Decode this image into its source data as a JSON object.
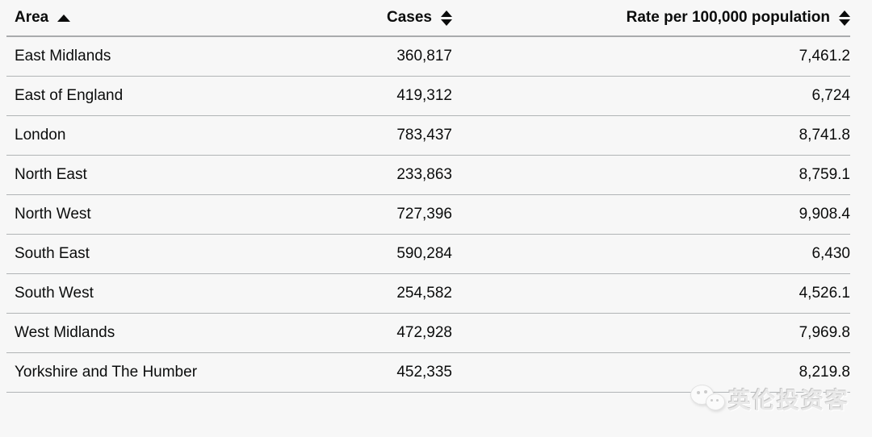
{
  "table": {
    "columns": [
      {
        "label": "Area",
        "sort_state": "ascending",
        "sort_icon": "sort-ascending-icon"
      },
      {
        "label": "Cases",
        "sort_state": "none",
        "sort_icon": "sort-both-icon"
      },
      {
        "label": "Rate per 100,000 population",
        "sort_state": "none",
        "sort_icon": "sort-both-icon"
      }
    ],
    "rows": [
      {
        "area": "East Midlands",
        "cases": "360,817",
        "rate": "7,461.2"
      },
      {
        "area": "East of England",
        "cases": "419,312",
        "rate": "6,724"
      },
      {
        "area": "London",
        "cases": "783,437",
        "rate": "8,741.8"
      },
      {
        "area": "North East",
        "cases": "233,863",
        "rate": "8,759.1"
      },
      {
        "area": "North West",
        "cases": "727,396",
        "rate": "9,908.4"
      },
      {
        "area": "South East",
        "cases": "590,284",
        "rate": "6,430"
      },
      {
        "area": "South West",
        "cases": "254,582",
        "rate": "4,526.1"
      },
      {
        "area": "West Midlands",
        "cases": "472,928",
        "rate": "7,969.8"
      },
      {
        "area": "Yorkshire and The Humber",
        "cases": "452,335",
        "rate": "8,219.8"
      }
    ]
  },
  "watermark": {
    "text": "英伦投资客",
    "icon": "wechat-icon"
  },
  "colors": {
    "background": "#f7f7f7",
    "text": "#0b0c0c",
    "header_border": "#a9abad",
    "row_border": "#b1b4b6",
    "watermark_text": "#e9e9e9"
  }
}
